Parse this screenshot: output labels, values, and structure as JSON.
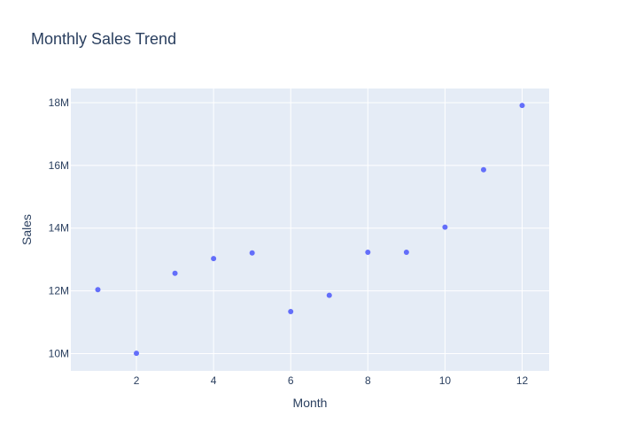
{
  "chart_data": {
    "type": "scatter",
    "title": "Monthly Sales Trend",
    "xlabel": "Month",
    "ylabel": "Sales",
    "x": [
      1,
      2,
      3,
      4,
      5,
      6,
      7,
      8,
      9,
      10,
      11,
      12
    ],
    "y": [
      12040000,
      10010000,
      12560000,
      13030000,
      13210000,
      11340000,
      11860000,
      13230000,
      13230000,
      14030000,
      15860000,
      17910000
    ],
    "xlim": [
      0.3,
      12.7
    ],
    "ylim": [
      9450000,
      18450000
    ],
    "x_ticks": [
      2,
      4,
      6,
      8,
      10,
      12
    ],
    "x_tick_labels": [
      "2",
      "4",
      "6",
      "8",
      "10",
      "12"
    ],
    "y_ticks": [
      10000000,
      12000000,
      14000000,
      16000000,
      18000000
    ],
    "y_tick_labels": [
      "10M",
      "12M",
      "14M",
      "16M",
      "18M"
    ],
    "grid": true,
    "legend": "none",
    "colors": {
      "marker": "#636efa",
      "plot_background": "#e5ecf6",
      "grid": "#ffffff",
      "text": "#2a3f5f"
    }
  }
}
